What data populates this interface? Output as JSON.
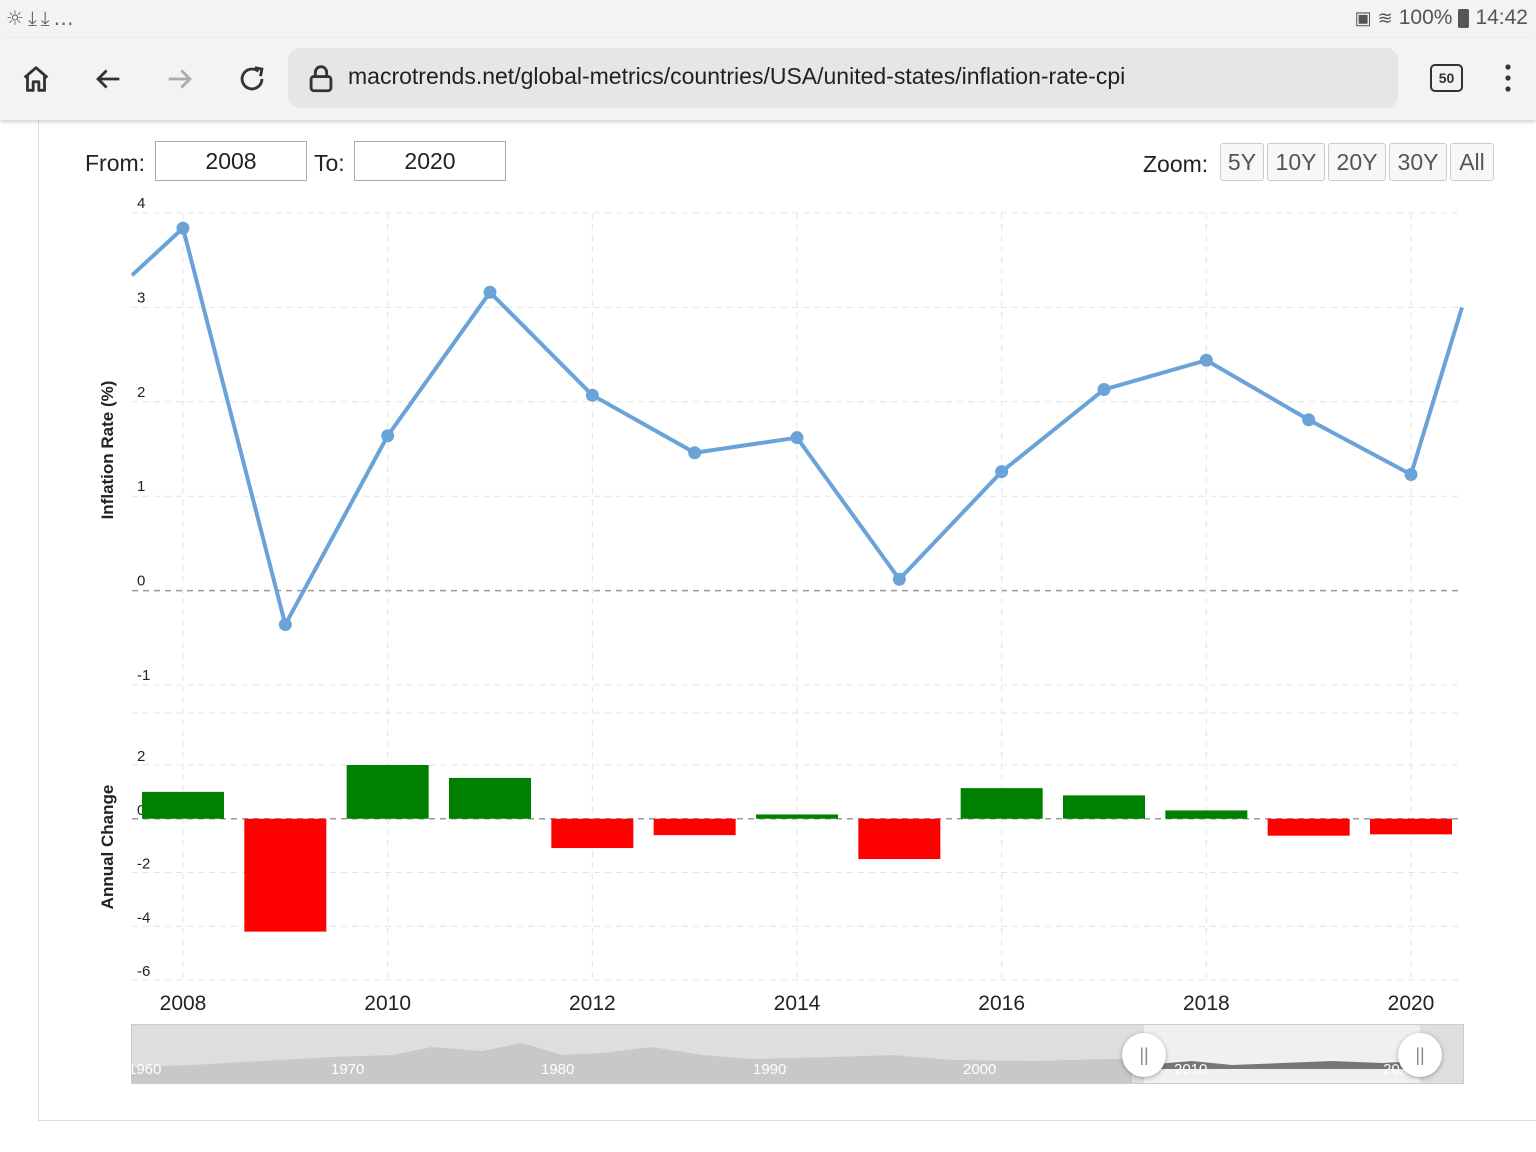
{
  "status_bar": {
    "left_icons": [
      "weather-icon",
      "download-icon",
      "download-icon",
      "more-icon"
    ],
    "battery": "100%",
    "time": "14:42"
  },
  "browser": {
    "url": "macrotrends.net/global-metrics/countries/USA/united-states/inflation-rate-cpi",
    "tab_count": "50"
  },
  "range": {
    "from_label": "From:",
    "from_value": "2008",
    "to_label": "To:",
    "to_value": "2020"
  },
  "zoom": {
    "label": "Zoom:",
    "options": [
      "5Y",
      "10Y",
      "20Y",
      "30Y",
      "All"
    ]
  },
  "navigator": {
    "decades": [
      "1960",
      "1970",
      "1980",
      "1990",
      "2000",
      "2010",
      "2020"
    ]
  },
  "colors": {
    "line": "#6aa3d8",
    "positive": "#008000",
    "negative": "#ff0000"
  },
  "chart_data": [
    {
      "type": "line",
      "ylabel": "Inflation Rate (%)",
      "ylim": [
        -1,
        4
      ],
      "yticks": [
        4,
        3,
        2,
        1,
        0,
        -1
      ],
      "x": [
        2008,
        2009,
        2010,
        2011,
        2012,
        2013,
        2014,
        2015,
        2016,
        2017,
        2018,
        2019,
        2020
      ],
      "xticks": [
        2008,
        2010,
        2012,
        2014,
        2016,
        2018,
        2020
      ],
      "series": [
        {
          "values": [
            3.84,
            -0.36,
            1.64,
            3.16,
            2.07,
            1.46,
            1.62,
            0.12,
            1.26,
            2.13,
            2.44,
            1.81,
            1.23
          ]
        }
      ],
      "grid": true
    },
    {
      "type": "bar",
      "ylabel": "Annual Change",
      "ylim": [
        -6,
        2
      ],
      "yticks": [
        2,
        0,
        -2,
        -4,
        -6
      ],
      "x": [
        2008,
        2009,
        2010,
        2011,
        2012,
        2013,
        2014,
        2015,
        2016,
        2017,
        2018,
        2019,
        2020
      ],
      "values": [
        1.0,
        -4.2,
        2.0,
        1.52,
        -1.09,
        -0.61,
        0.16,
        -1.5,
        1.14,
        0.87,
        0.31,
        -0.63,
        -0.58
      ],
      "grid": true
    }
  ]
}
